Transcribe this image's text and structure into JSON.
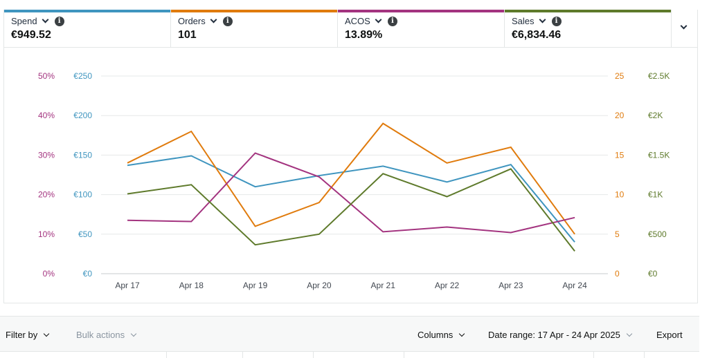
{
  "metrics": [
    {
      "label": "Spend",
      "value": "€949.52",
      "color": "#3f95bf",
      "info_icon": "info-icon",
      "dropdown_icon": "chevron-down-icon"
    },
    {
      "label": "Orders",
      "value": "101",
      "color": "#e07b0d",
      "info_icon": "info-icon",
      "dropdown_icon": "chevron-down-icon"
    },
    {
      "label": "ACOS",
      "value": "13.89%",
      "color": "#a3337f",
      "info_icon": "info-icon",
      "dropdown_icon": "chevron-down-icon"
    },
    {
      "label": "Sales",
      "value": "€6,834.46",
      "color": "#5e7a2b",
      "info_icon": "info-icon",
      "dropdown_icon": "chevron-down-icon"
    }
  ],
  "info_glyph": "i",
  "chart_data": {
    "type": "line",
    "categories": [
      "Apr 17",
      "Apr 18",
      "Apr 19",
      "Apr 20",
      "Apr 21",
      "Apr 22",
      "Apr 23",
      "Apr 24"
    ],
    "series": [
      {
        "name": "Spend",
        "color": "#3f95bf",
        "axis": "spend",
        "values": [
          137,
          149,
          110,
          124,
          136,
          116,
          138,
          40
        ]
      },
      {
        "name": "Orders",
        "color": "#e07b0d",
        "axis": "orders",
        "values": [
          14,
          18,
          6,
          9,
          19,
          14,
          16,
          5
        ]
      },
      {
        "name": "ACOS",
        "color": "#a3337f",
        "axis": "acos",
        "values": [
          13.5,
          13.2,
          30.5,
          24.5,
          10.6,
          11.8,
          10.4,
          14.2
        ]
      },
      {
        "name": "Sales",
        "color": "#5e7a2b",
        "axis": "sales",
        "values": [
          1010,
          1125,
          365,
          500,
          1265,
          975,
          1325,
          285
        ]
      }
    ],
    "axes": {
      "acos": {
        "color": "#a3337f",
        "ticks": [
          "0%",
          "10%",
          "20%",
          "30%",
          "40%",
          "50%"
        ],
        "range": [
          0,
          50
        ]
      },
      "spend": {
        "color": "#3f95bf",
        "ticks": [
          "€0",
          "€50",
          "€100",
          "€150",
          "€200",
          "€250"
        ],
        "range": [
          0,
          250
        ]
      },
      "orders": {
        "color": "#e07b0d",
        "ticks": [
          "0",
          "5",
          "10",
          "15",
          "20",
          "25"
        ],
        "range": [
          0,
          25
        ]
      },
      "sales": {
        "color": "#5e7a2b",
        "ticks": [
          "€0",
          "€500",
          "€1K",
          "€1.5K",
          "€2K",
          "€2.5K"
        ],
        "range": [
          0,
          2500
        ]
      }
    },
    "grid": true
  },
  "toolbar": {
    "filter_by": "Filter by",
    "bulk_actions": "Bulk actions",
    "columns": "Columns",
    "date_range": "Date range: 17 Apr - 24 Apr 2025",
    "export": "Export"
  }
}
